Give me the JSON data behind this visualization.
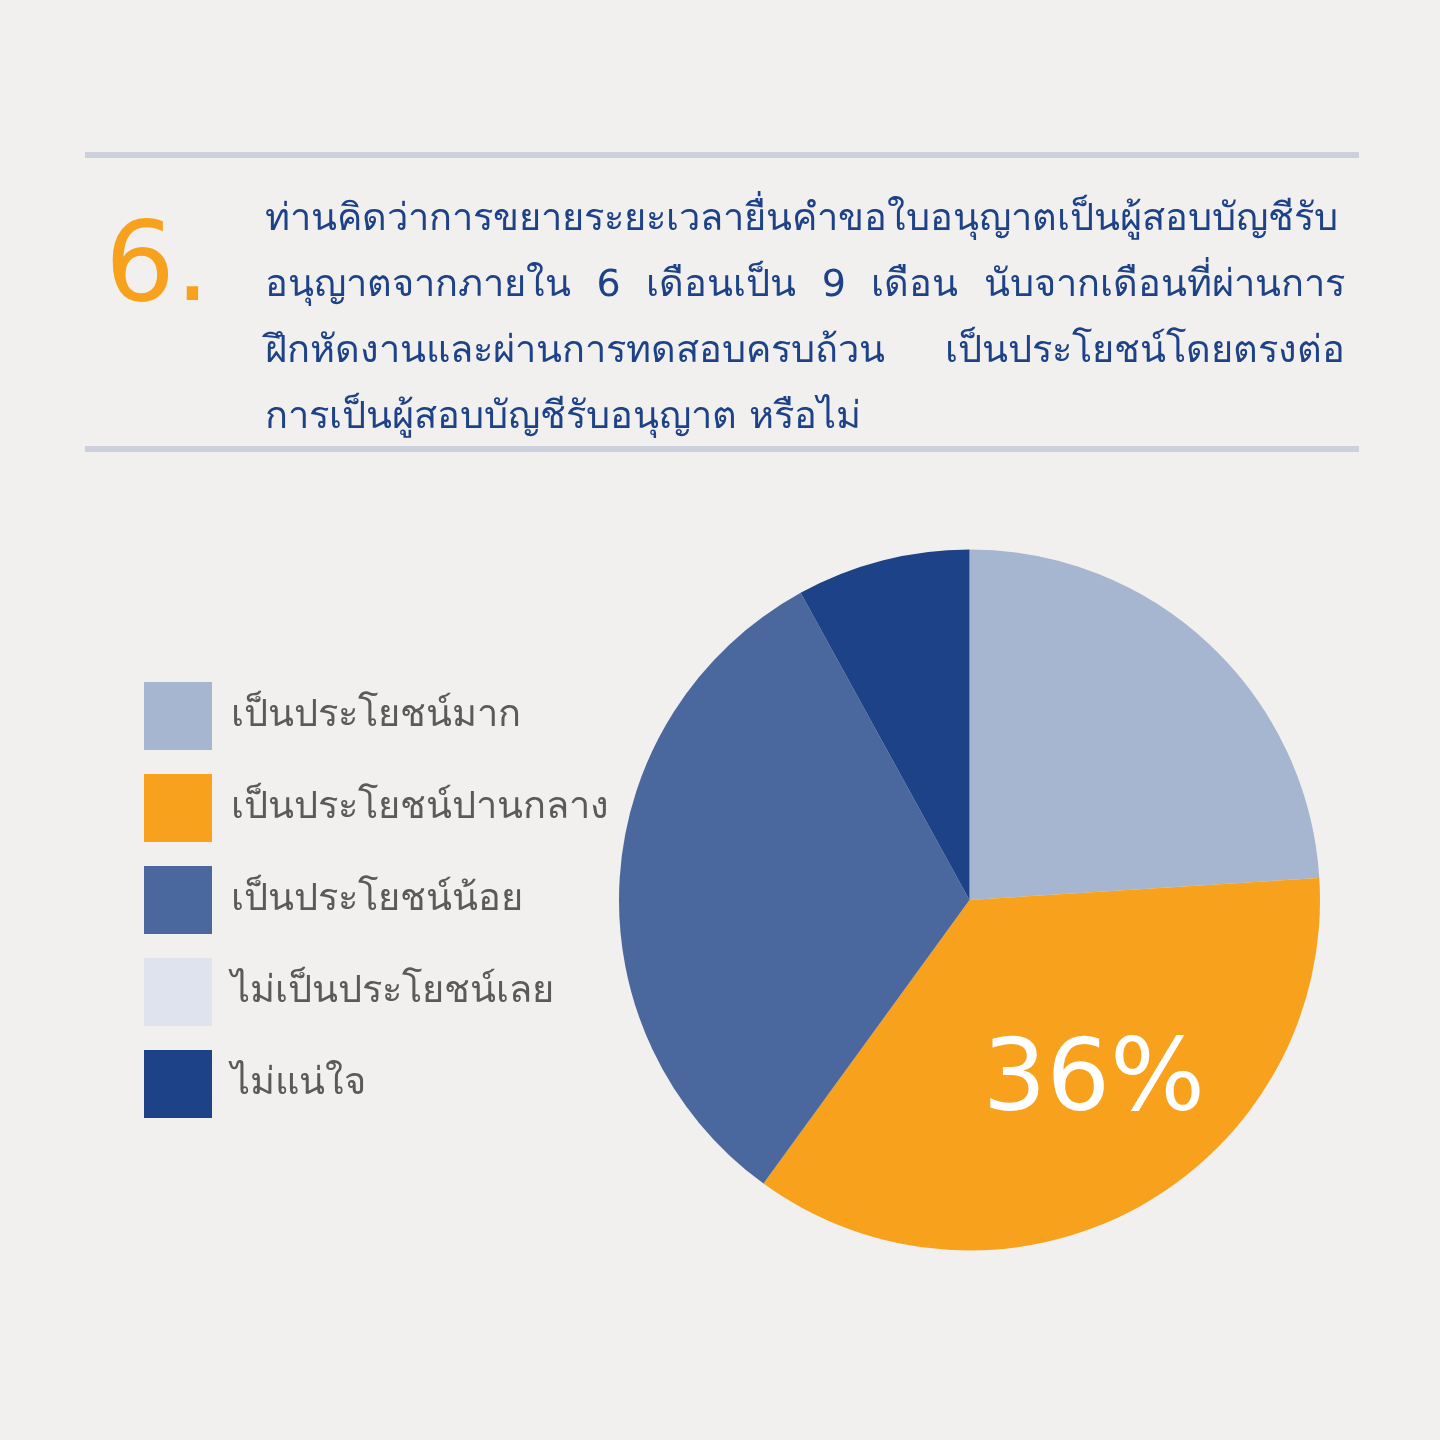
{
  "chart_data": {
    "type": "pie",
    "title": "6.",
    "subtitle": "ท่านคิดว่าการขยายระยะเวลายื่นคำขอใบอนุญาตเป็นผู้สอบบัญชีรับอนุญาตจากภายใน 6 เดือนเป็น 9 เดือน นับจากเดือนที่ผ่านการฝึกหัดงานและผ่านการทดสอบครบถ้วน  เป็นประโยชน์โดยตรงต่อการเป็นผู้สอบบัญชีรับอนุญาต หรือไม่",
    "categories": [
      "เป็นประโยชน์มาก",
      "เป็นประโยชน์ปานกลาง",
      "เป็นประโยชน์น้อย",
      "ไม่เป็นประโยชน์เลย",
      "ไม่แน่ใจ"
    ],
    "values": [
      24,
      36,
      32,
      0,
      8
    ],
    "colors": [
      "#a6b5d0",
      "#f7a11d",
      "#4b689e",
      "#dfe3ee",
      "#1e4287"
    ],
    "value_labels": [
      null,
      "36%",
      null,
      null,
      null
    ],
    "legend": "left"
  }
}
